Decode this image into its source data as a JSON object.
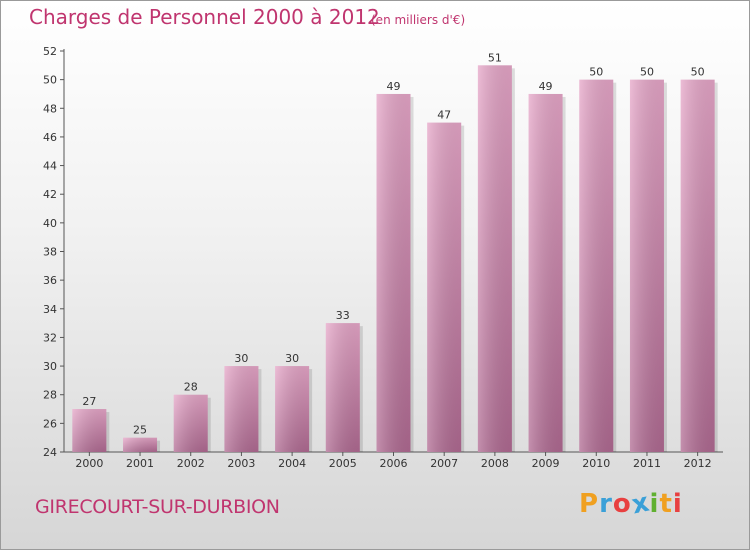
{
  "title": "Charges de Personnel 2000 à 2012",
  "subtitle": "(en milliers d'€)",
  "city": "GIRECOURT-SUR-DURBION",
  "logo": {
    "letters": [
      "P",
      "r",
      "o",
      "x",
      "i",
      "t",
      "i"
    ],
    "colors": [
      "#f0a020",
      "#3aa0d8",
      "#e84040",
      "#3aa0d8",
      "#60b030",
      "#f0a020",
      "#e84040"
    ]
  },
  "colors": {
    "accent": "#c0356f",
    "bar": "#d88cb4",
    "bar_dark": "#b06a92"
  },
  "chart_data": {
    "type": "bar",
    "title": "Charges de Personnel 2000 à 2012",
    "subtitle": "(en milliers d'€)",
    "categories": [
      "2000",
      "2001",
      "2002",
      "2003",
      "2004",
      "2005",
      "2006",
      "2007",
      "2008",
      "2009",
      "2010",
      "2011",
      "2012"
    ],
    "values": [
      27,
      25,
      28,
      30,
      30,
      33,
      49,
      47,
      51,
      49,
      50,
      50,
      50
    ],
    "ylim": [
      24,
      52
    ],
    "yticks": [
      24,
      26,
      28,
      30,
      32,
      34,
      36,
      38,
      40,
      42,
      44,
      46,
      48,
      50,
      52
    ],
    "grid": false,
    "legend": "none"
  }
}
